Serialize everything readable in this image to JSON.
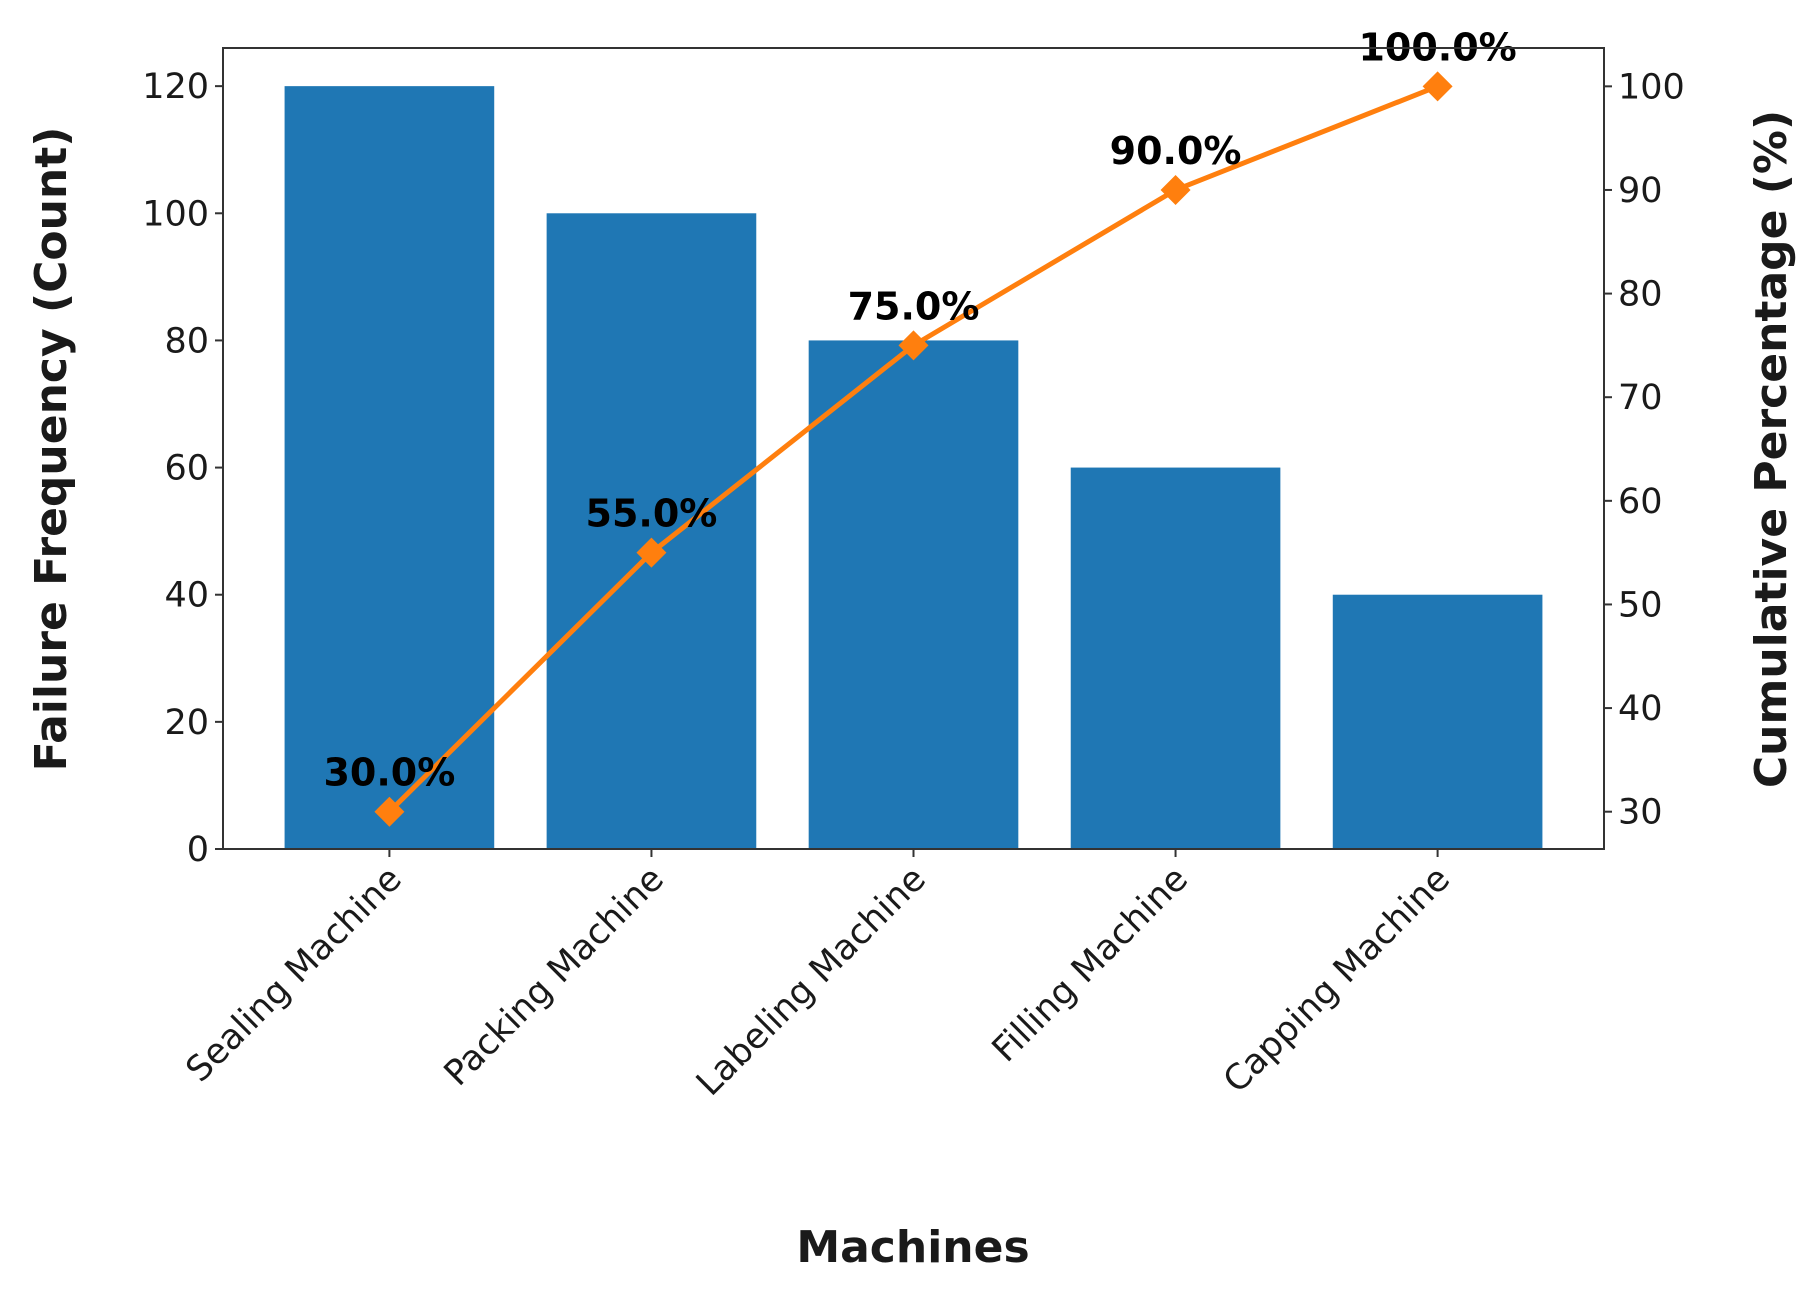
{
  "chart_data": {
    "type": "bar",
    "x_label": "Machines",
    "y_label": "Failure Frequency (Count)",
    "y2_label": "Cumulative Percentage (%)",
    "categories": [
      "Sealing Machine",
      "Packing Machine",
      "Labeling Machine",
      "Filling Machine",
      "Capping Machine"
    ],
    "series": [
      {
        "type": "bar",
        "color": "#1f77b4",
        "values": [
          120,
          100,
          80,
          60,
          40
        ]
      },
      {
        "type": "line",
        "axis": "y2",
        "color": "#ff7f0e",
        "marker": "diamond",
        "values": [
          30,
          55,
          75,
          90,
          100
        ],
        "value_labels": [
          "30.0%",
          "55.0%",
          "75.0%",
          "90.0%",
          "100.0%"
        ]
      }
    ],
    "ylim": [
      0,
      126
    ],
    "yticks": [
      0,
      20,
      40,
      60,
      80,
      100,
      120
    ],
    "y2lim": [
      26.4,
      103.7
    ],
    "y2ticks": [
      30,
      40,
      50,
      60,
      70,
      80,
      90,
      100
    ],
    "grid": false
  }
}
